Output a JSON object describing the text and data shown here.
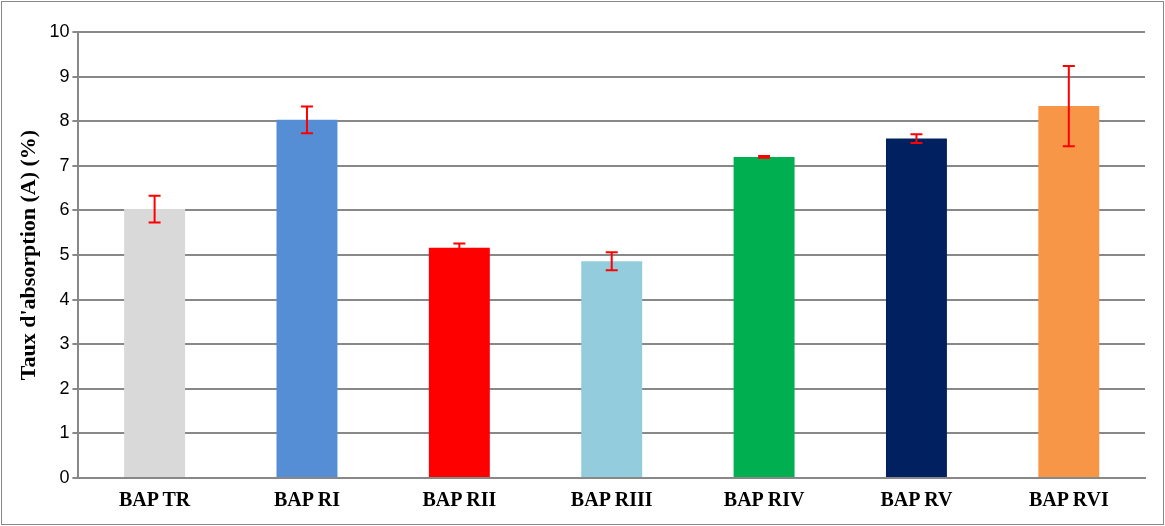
{
  "chart_data": {
    "type": "bar",
    "ylabel": "Taux d'absorption (A) (%)",
    "categories": [
      "BAP TR",
      "BAP RI",
      "BAP RII",
      "BAP RIII",
      "BAP RIV",
      "BAP RV",
      "BAP RVI"
    ],
    "values": [
      6.03,
      8.03,
      5.16,
      4.86,
      7.2,
      7.61,
      8.34
    ],
    "colors": [
      "#d9d9d9",
      "#558ed5",
      "#ff0000",
      "#93cddd",
      "#00b050",
      "#002060",
      "#f79646"
    ],
    "errors": [
      0.3,
      0.3,
      0.1,
      0.2,
      0.02,
      0.1,
      0.9
    ],
    "ylim": [
      0,
      10
    ],
    "yticks": [
      0,
      1,
      2,
      3,
      4,
      5,
      6,
      7,
      8,
      9,
      10
    ],
    "grid": "y",
    "legend": false
  }
}
